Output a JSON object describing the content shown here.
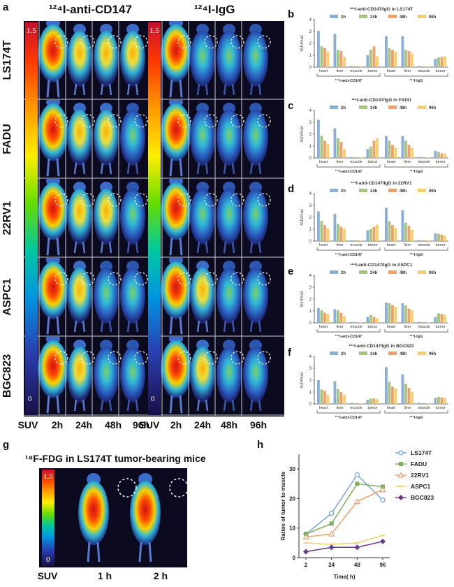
{
  "panel_letters": [
    "a",
    "b",
    "c",
    "d",
    "e",
    "f",
    "g",
    "h"
  ],
  "panel_a": {
    "title_left": "¹²⁴I-anti-CD147",
    "title_right": "¹²⁴I-IgG",
    "rows": [
      "LS174T",
      "FADU",
      "22RV1",
      "ASPC1",
      "BGC823"
    ],
    "scale_max": "1.5",
    "scale_min": "0",
    "col_labels_left": [
      "SUV",
      "2h",
      "24h",
      "48h",
      "96h"
    ],
    "col_labels_right": [
      "SUV",
      "2h",
      "24h",
      "48h",
      "96h"
    ]
  },
  "panel_g": {
    "title": "¹⁸F-FDG in LS174T tumor-bearing mice",
    "scale_max": "1.5",
    "scale_min": "0",
    "col_labels": [
      "SUV",
      "1 h",
      "2 h"
    ]
  },
  "chart_data": [
    {
      "type": "bar",
      "panel": "b",
      "title": "¹²⁴I-anti-CD147/IgG in LS174T",
      "ylabel": "SUVmax",
      "ylim": [
        0,
        4
      ],
      "yticks": [
        0,
        1,
        2,
        3,
        4
      ],
      "categories": [
        "heart",
        "liver",
        "muscle",
        "tumor",
        "heart",
        "liver",
        "muscle",
        "tumor"
      ],
      "groups": [
        "¹²⁴I-anti-CD147",
        "¹²⁴I-IgG"
      ],
      "series": [
        {
          "name": "2h",
          "values": [
            3.05,
            2.8,
            0.08,
            1.0,
            2.6,
            2.6,
            0.08,
            0.7
          ]
        },
        {
          "name": "24h",
          "values": [
            1.75,
            1.45,
            0.07,
            1.45,
            1.6,
            1.45,
            0.07,
            0.8
          ]
        },
        {
          "name": "48h",
          "values": [
            1.6,
            1.35,
            0.07,
            1.75,
            1.45,
            1.35,
            0.06,
            0.85
          ]
        },
        {
          "name": "96h",
          "values": [
            1.3,
            0.85,
            0.05,
            0.9,
            1.3,
            1.15,
            0.05,
            0.9
          ]
        }
      ]
    },
    {
      "type": "bar",
      "panel": "c",
      "title": "¹²⁴I-anti-CD147/IgG in FADU",
      "ylabel": "SUVmax",
      "ylim": [
        0,
        4
      ],
      "yticks": [
        0,
        1,
        2,
        3,
        4
      ],
      "categories": [
        "heart",
        "liver",
        "muscle",
        "tumor",
        "heart",
        "liver",
        "muscle",
        "tumor"
      ],
      "groups": [
        "¹²⁴I-anti-CD147",
        "¹²⁴I-IgG"
      ],
      "series": [
        {
          "name": "2h",
          "values": [
            3.2,
            2.5,
            0.08,
            0.75,
            1.85,
            1.85,
            0.08,
            0.6
          ]
        },
        {
          "name": "24h",
          "values": [
            1.85,
            1.65,
            0.07,
            0.95,
            1.45,
            1.45,
            0.07,
            0.5
          ]
        },
        {
          "name": "48h",
          "values": [
            1.45,
            1.35,
            0.06,
            1.45,
            1.1,
            1.1,
            0.06,
            0.4
          ]
        },
        {
          "name": "96h",
          "values": [
            1.15,
            0.75,
            0.05,
            1.65,
            0.85,
            0.85,
            0.05,
            0.35
          ]
        }
      ]
    },
    {
      "type": "bar",
      "panel": "d",
      "title": "¹²⁴I-anti-CD147/IgG in 22RV1",
      "ylabel": "SUVmax",
      "ylim": [
        0,
        4
      ],
      "yticks": [
        0,
        1,
        2,
        3,
        4
      ],
      "categories": [
        "heart",
        "liver",
        "muscle",
        "tumor",
        "heart",
        "liver",
        "muscle",
        "tumor"
      ],
      "groups": [
        "¹²⁴I-anti-CD147",
        "¹²⁴I-IgG"
      ],
      "series": [
        {
          "name": "2h",
          "values": [
            2.5,
            2.3,
            0.08,
            0.9,
            2.8,
            2.6,
            0.08,
            0.65
          ]
        },
        {
          "name": "24h",
          "values": [
            1.7,
            1.45,
            0.07,
            1.0,
            1.65,
            1.55,
            0.07,
            0.6
          ]
        },
        {
          "name": "48h",
          "values": [
            1.35,
            1.2,
            0.06,
            1.2,
            1.35,
            1.3,
            0.06,
            0.55
          ]
        },
        {
          "name": "96h",
          "values": [
            1.05,
            1.05,
            0.05,
            1.4,
            1.1,
            0.95,
            0.05,
            0.45
          ]
        }
      ]
    },
    {
      "type": "bar",
      "panel": "e",
      "title": "¹²⁴I-anti-CD147/IgG in ASPC1",
      "ylabel": "SUVmax",
      "ylim": [
        0,
        4
      ],
      "yticks": [
        0,
        1,
        2,
        3,
        4
      ],
      "categories": [
        "heart",
        "liver",
        "muscle",
        "tumor",
        "heart",
        "liver",
        "muscle",
        "tumor"
      ],
      "groups": [
        "¹²⁴I-anti-CD147",
        "¹²⁴I-IgG"
      ],
      "series": [
        {
          "name": "2h",
          "values": [
            1.25,
            1.15,
            0.08,
            0.5,
            1.7,
            1.65,
            0.08,
            0.5
          ]
        },
        {
          "name": "24h",
          "values": [
            1.05,
            1.05,
            0.07,
            0.65,
            1.65,
            1.45,
            0.07,
            0.8
          ]
        },
        {
          "name": "48h",
          "values": [
            0.85,
            0.85,
            0.06,
            0.5,
            1.5,
            1.2,
            0.06,
            0.75
          ]
        },
        {
          "name": "96h",
          "values": [
            0.75,
            0.55,
            0.05,
            0.35,
            1.35,
            1.05,
            0.05,
            0.65
          ]
        }
      ]
    },
    {
      "type": "bar",
      "panel": "f",
      "title": "¹²⁴I-anti-CD147/IgG in BGC823",
      "ylabel": "SUVmax",
      "ylim": [
        0,
        4
      ],
      "yticks": [
        0,
        1,
        2,
        3,
        4
      ],
      "categories": [
        "heart",
        "liver",
        "muscle",
        "tumor",
        "heart",
        "liver",
        "muscle",
        "tumor"
      ],
      "groups": [
        "¹²⁴I-anti-CD147",
        "¹²⁴I-IgG"
      ],
      "series": [
        {
          "name": "2h",
          "values": [
            2.0,
            1.9,
            0.08,
            0.35,
            3.1,
            2.5,
            0.08,
            0.5
          ]
        },
        {
          "name": "24h",
          "values": [
            1.2,
            1.25,
            0.07,
            0.45,
            1.85,
            1.7,
            0.07,
            0.6
          ]
        },
        {
          "name": "48h",
          "values": [
            1.1,
            1.0,
            0.06,
            0.45,
            1.45,
            1.35,
            0.06,
            0.55
          ]
        },
        {
          "name": "96h",
          "values": [
            0.75,
            0.75,
            0.05,
            0.4,
            1.3,
            1.0,
            0.05,
            0.5
          ]
        }
      ]
    },
    {
      "type": "line",
      "panel": "h",
      "xlabel": "Time( h)",
      "ylabel": "Ratios of tumor to muscle",
      "x": [
        2,
        24,
        48,
        96
      ],
      "xticks": [
        "2",
        "24",
        "48",
        "96"
      ],
      "ylim": [
        0,
        35
      ],
      "yticks": [
        0,
        10,
        20,
        30
      ],
      "series": [
        {
          "name": "LS174T",
          "values": [
            8,
            15,
            28,
            19.5
          ]
        },
        {
          "name": "FADU",
          "values": [
            8,
            11.5,
            25,
            24
          ]
        },
        {
          "name": "22RV1",
          "values": [
            7,
            8,
            19,
            23
          ]
        },
        {
          "name": "ASPC1",
          "values": [
            5,
            4.5,
            5,
            7.5
          ]
        },
        {
          "name": "BGC823",
          "values": [
            2,
            3.5,
            3.5,
            5.5
          ]
        }
      ]
    }
  ],
  "colors": {
    "2h": "#8aaed6",
    "24h": "#a7c47e",
    "48h": "#f0a06a",
    "96h": "#f5cf6c",
    "LS174T": "#7aa5d8",
    "FADU": "#7fae5c",
    "22RV1": "#f0a070",
    "ASPC1": "#f4d070",
    "BGC823": "#6a3a8e"
  }
}
